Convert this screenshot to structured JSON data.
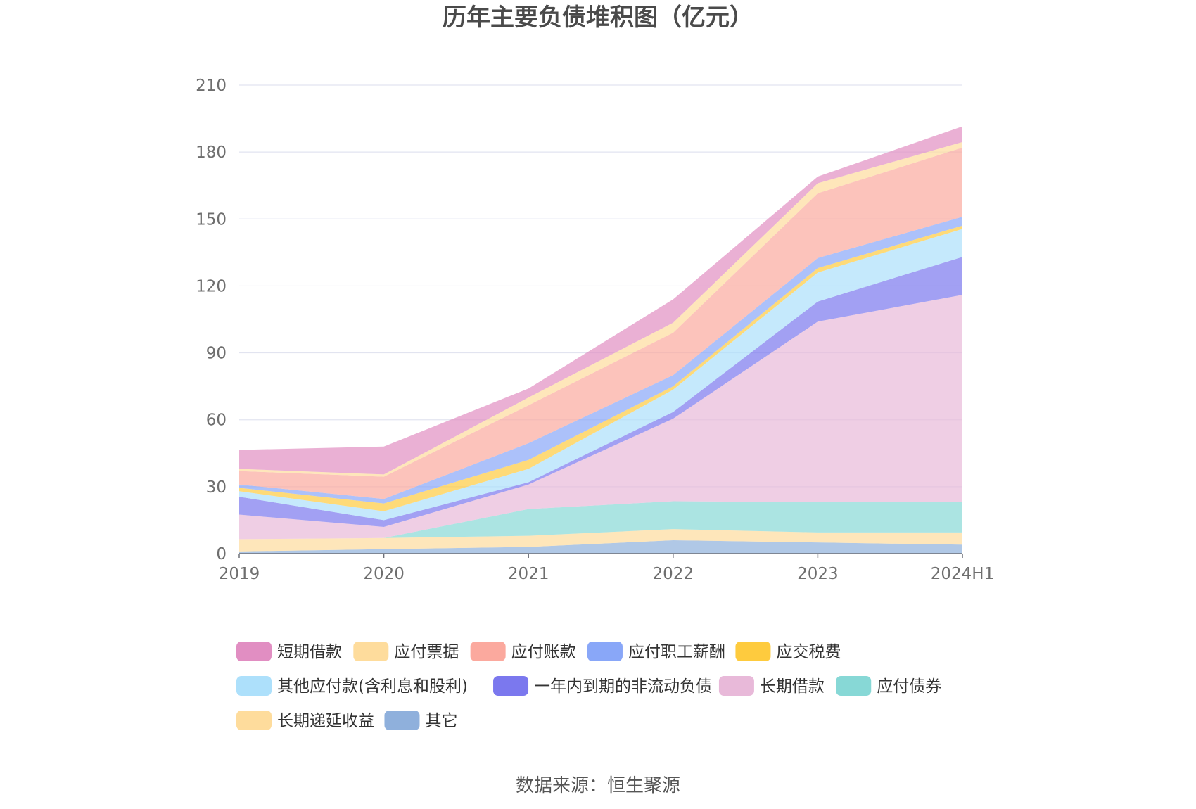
{
  "chart_data": {
    "type": "area",
    "stacked": true,
    "title": "历年主要负债堆积图（亿元）",
    "source": "数据来源：恒生聚源",
    "xlabel": "",
    "ylabel": "",
    "ylim": [
      0,
      210
    ],
    "yticks": [
      0,
      30,
      60,
      90,
      120,
      150,
      180,
      210
    ],
    "categories": [
      "2019",
      "2020",
      "2021",
      "2022",
      "2023",
      "2024H1"
    ],
    "legend_position": "bottom",
    "series": [
      {
        "name": "其它",
        "color": "#8fb0dc",
        "values": [
          1.0,
          2.0,
          3.0,
          6.0,
          5.0,
          4.0
        ]
      },
      {
        "name": "长期递延收益",
        "color": "#fedc9c",
        "values": [
          5.5,
          5.0,
          5.0,
          5.0,
          4.5,
          5.5
        ]
      },
      {
        "name": "应付债券",
        "color": "#87d8d6",
        "values": [
          0.0,
          0.0,
          12.0,
          12.5,
          13.5,
          13.5
        ]
      },
      {
        "name": "长期借款",
        "color": "#e8b9d9",
        "values": [
          11.0,
          5.0,
          11.0,
          37.0,
          81.0,
          93.0
        ]
      },
      {
        "name": "一年内到期的非流动负债",
        "color": "#7b78ee",
        "values": [
          8.0,
          3.0,
          1.0,
          3.0,
          9.0,
          17.0
        ]
      },
      {
        "name": "其他应付款(含利息和股利)",
        "color": "#ade0fb",
        "values": [
          2.5,
          4.0,
          6.0,
          10.0,
          13.0,
          12.5
        ]
      },
      {
        "name": "应交税费",
        "color": "#fecb3e",
        "values": [
          1.5,
          3.5,
          4.0,
          1.5,
          2.0,
          1.5
        ]
      },
      {
        "name": "应付职工薪酬",
        "color": "#89a7f8",
        "values": [
          1.5,
          2.0,
          7.5,
          5.0,
          4.5,
          4.0
        ]
      },
      {
        "name": "应付账款",
        "color": "#fba99e",
        "values": [
          6.0,
          10.0,
          17.0,
          19.0,
          29.0,
          31.0
        ]
      },
      {
        "name": "应付票据",
        "color": "#fedc9c",
        "values": [
          1.0,
          1.0,
          3.5,
          4.5,
          4.5,
          2.5
        ]
      },
      {
        "name": "短期借款",
        "color": "#e18ec2",
        "values": [
          8.5,
          12.5,
          4.0,
          10.5,
          3.0,
          7.0
        ]
      }
    ],
    "legend_order": [
      "短期借款",
      "应付票据",
      "应付账款",
      "应付职工薪酬",
      "应交税费",
      "其他应付款(含利息和股利)",
      "一年内到期的非流动负债",
      "长期借款",
      "应付债券",
      "长期递延收益",
      "其它"
    ]
  }
}
